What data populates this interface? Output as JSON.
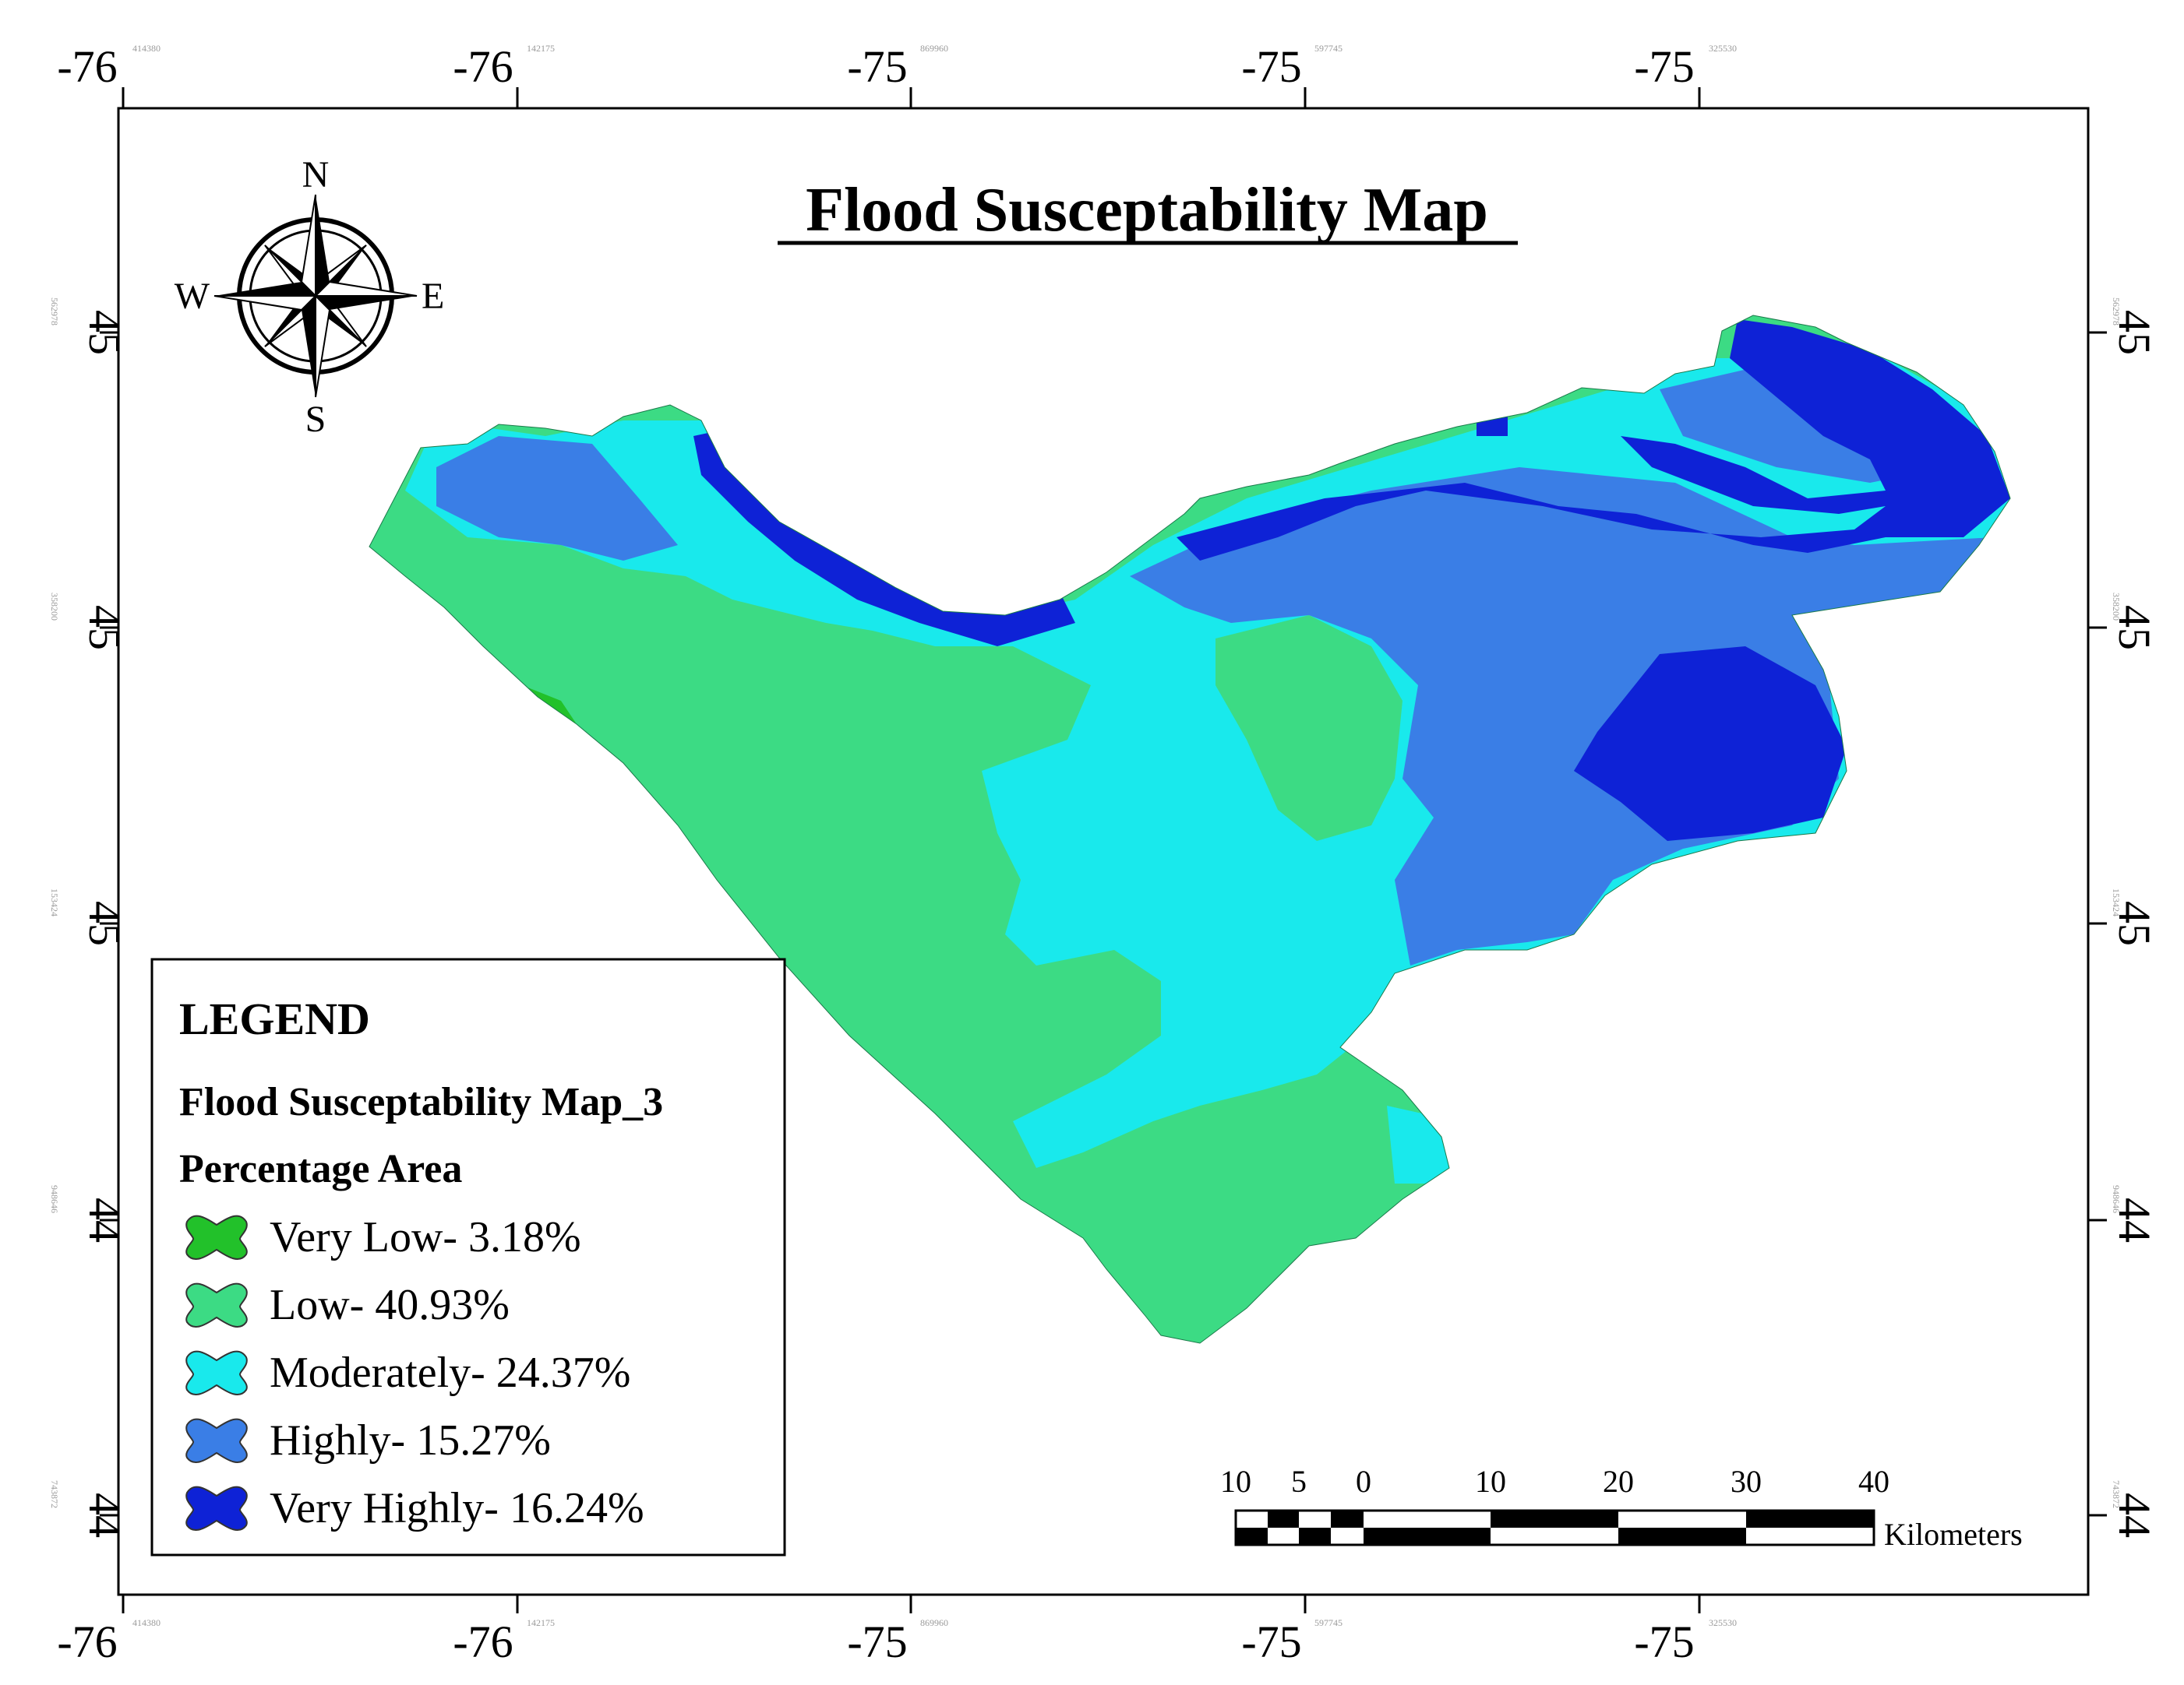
{
  "map": {
    "title": "Flood Susceptability Map",
    "north_arrow": {
      "n": "N",
      "s": "S",
      "e": "E",
      "w": "W"
    },
    "top_ticks": [
      {
        "label": "-76",
        "small": "414380"
      },
      {
        "label": "-76",
        "small": "142175"
      },
      {
        "label": "-75",
        "small": "869960"
      },
      {
        "label": "-75",
        "small": "597745"
      },
      {
        "label": "-75",
        "small": "325530"
      }
    ],
    "side_ticks": [
      {
        "label": "45",
        "small": "562978"
      },
      {
        "label": "45",
        "small": "358200"
      },
      {
        "label": "45",
        "small": "153424"
      },
      {
        "label": "44",
        "small": "948646"
      },
      {
        "label": "44",
        "small": "743872"
      }
    ],
    "legend": {
      "heading": "LEGEND",
      "layer_name": "Flood Susceptability Map_3",
      "subtitle": "Percentage Area",
      "items": [
        {
          "label": "Very Low- 3.18%",
          "color": "#22c12a"
        },
        {
          "label": "Low- 40.93%",
          "color": "#3cdb84"
        },
        {
          "label": "Moderately- 24.37%",
          "color": "#19e9ec"
        },
        {
          "label": "Highly- 15.27%",
          "color": "#3a7ee6"
        },
        {
          "label": "Very Highly- 16.24%",
          "color": "#0e22d6"
        }
      ]
    },
    "scale_bar": {
      "labels": [
        "10",
        "5",
        "0",
        "10",
        "20",
        "30",
        "40"
      ],
      "unit": "Kilometers"
    }
  }
}
